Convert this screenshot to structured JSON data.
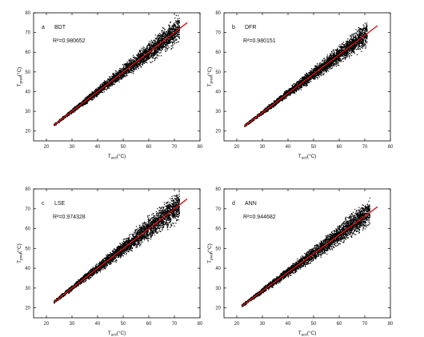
{
  "chart_data": [
    {
      "type": "scatter",
      "panel_letter": "a",
      "model": "BDT",
      "r2_text": "R²=0.980652",
      "xlabel_main": "T",
      "xlabel_sub": "acti",
      "xlabel_unit": "(°C)",
      "ylabel_main": "T",
      "ylabel_sub": "pred",
      "ylabel_unit": "(°C)",
      "xlim": [
        15,
        80
      ],
      "ylim": [
        15,
        80
      ],
      "xticks": [
        20,
        30,
        40,
        50,
        60,
        70,
        80
      ],
      "yticks": [
        20,
        30,
        40,
        50,
        60,
        70,
        80
      ],
      "fit_line": {
        "x": [
          23,
          75
        ],
        "y": [
          23,
          75
        ]
      },
      "scatter_band": {
        "x_min": 23,
        "x_max": 72,
        "spread": [
          0.8,
          9
        ]
      },
      "line_color": "#dd1111",
      "point_color": "#000000"
    },
    {
      "type": "scatter",
      "panel_letter": "b",
      "model": "DFR",
      "r2_text": "R²=0.980151",
      "xlabel_main": "T",
      "xlabel_sub": "acti",
      "xlabel_unit": "(°C)",
      "ylabel_main": "T",
      "ylabel_sub": "pred",
      "ylabel_unit": "(°C)",
      "xlim": [
        15,
        80
      ],
      "ylim": [
        15,
        80
      ],
      "xticks": [
        20,
        30,
        40,
        50,
        60,
        70,
        80
      ],
      "yticks": [
        20,
        30,
        40,
        50,
        60,
        70,
        80
      ],
      "fit_line": {
        "x": [
          23,
          75
        ],
        "y": [
          22.5,
          73.5
        ]
      },
      "scatter_band": {
        "x_min": 23,
        "x_max": 71,
        "spread": [
          0.8,
          8
        ]
      },
      "line_color": "#dd1111",
      "point_color": "#000000"
    },
    {
      "type": "scatter",
      "panel_letter": "c",
      "model": "LSE",
      "r2_text": "R²=0.974328",
      "xlabel_main": "T",
      "xlabel_sub": "acti",
      "xlabel_unit": "(°C)",
      "ylabel_main": "T",
      "ylabel_sub": "pred",
      "ylabel_unit": "(°C)",
      "xlim": [
        15,
        80
      ],
      "ylim": [
        15,
        80
      ],
      "xticks": [
        20,
        30,
        40,
        50,
        60,
        70,
        80
      ],
      "yticks": [
        20,
        30,
        40,
        50,
        60,
        70,
        80
      ],
      "fit_line": {
        "x": [
          23,
          75
        ],
        "y": [
          23,
          75
        ]
      },
      "scatter_band": {
        "x_min": 23,
        "x_max": 72,
        "spread": [
          1,
          10
        ]
      },
      "line_color": "#dd1111",
      "point_color": "#000000"
    },
    {
      "type": "scatter",
      "panel_letter": "d",
      "model": "ANN",
      "r2_text": "R²=0.944682",
      "xlabel_main": "T",
      "xlabel_sub": "acti",
      "xlabel_unit": "(°C)",
      "ylabel_main": "T",
      "ylabel_sub": "pred",
      "ylabel_unit": "(°C)",
      "xlim": [
        15,
        80
      ],
      "ylim": [
        15,
        80
      ],
      "xticks": [
        20,
        30,
        40,
        50,
        60,
        70,
        80
      ],
      "yticks": [
        20,
        30,
        40,
        50,
        60,
        70,
        80
      ],
      "fit_line": {
        "x": [
          22,
          75
        ],
        "y": [
          21,
          71
        ]
      },
      "scatter_band": {
        "x_min": 22,
        "x_max": 72,
        "spread": [
          1,
          9
        ]
      },
      "line_color": "#dd1111",
      "point_color": "#000000"
    }
  ]
}
